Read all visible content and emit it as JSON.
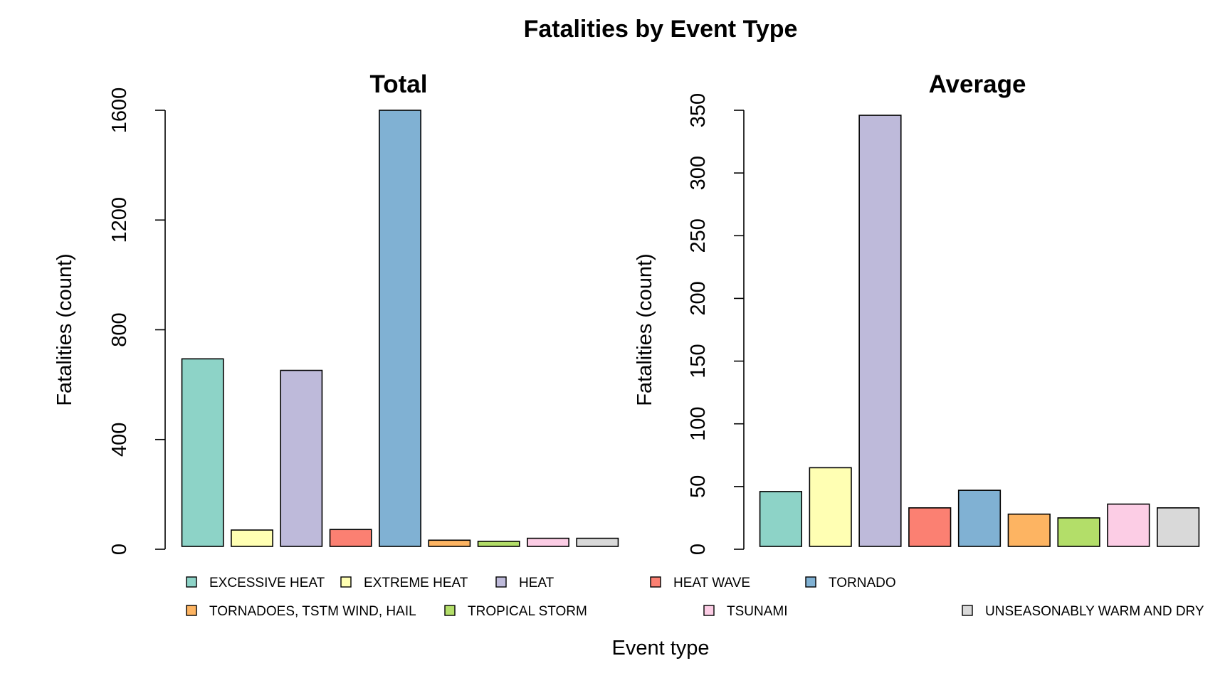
{
  "figure": {
    "title": "Fatalities by Event Type",
    "xlabel": "Event type"
  },
  "chart_data": [
    {
      "type": "bar",
      "title": "Total",
      "ylabel": "Fatalities (count)",
      "ylim": [
        0,
        1600
      ],
      "yticks": [
        "0",
        "400",
        "800",
        "1200",
        "1600"
      ],
      "categories": [
        "EXCESSIVE HEAT",
        "EXTREME HEAT",
        "HEAT",
        "HEAT WAVE",
        "TORNADO",
        "TORNADOES, TSTM WIND, HAIL",
        "TROPICAL STORM",
        "TSUNAMI",
        "UNSEASONABLY WARM AND DRY"
      ],
      "values": [
        694,
        70,
        652,
        72,
        1600,
        33,
        29,
        40,
        40
      ],
      "grid": false
    },
    {
      "type": "bar",
      "title": "Average",
      "ylabel": "Fatalities (count)",
      "ylim": [
        0,
        350
      ],
      "yticks": [
        "0",
        "50",
        "100",
        "150",
        "200",
        "250",
        "300",
        "350"
      ],
      "categories": [
        "EXCESSIVE HEAT",
        "EXTREME HEAT",
        "HEAT",
        "HEAT WAVE",
        "TORNADO",
        "TORNADOES, TSTM WIND, HAIL",
        "TROPICAL STORM",
        "TSUNAMI",
        "UNSEASONABLY WARM AND DRY"
      ],
      "values": [
        46,
        65,
        346,
        33,
        47,
        28,
        25,
        36,
        33
      ],
      "grid": false
    }
  ],
  "colors": [
    "#8DD3C7",
    "#FFFFB3",
    "#BEBADA",
    "#FB8072",
    "#80B1D3",
    "#FDB462",
    "#B3DE69",
    "#FCCDE5",
    "#D9D9D9"
  ],
  "legend": {
    "placement": "bottom",
    "rows": [
      [
        "EXCESSIVE HEAT",
        "EXTREME HEAT",
        "HEAT",
        "HEAT WAVE",
        "TORNADO"
      ],
      [
        "TORNADOES, TSTM WIND, HAIL",
        "TROPICAL STORM",
        "TSUNAMI",
        "UNSEASONABLY WARM AND DRY"
      ]
    ]
  }
}
